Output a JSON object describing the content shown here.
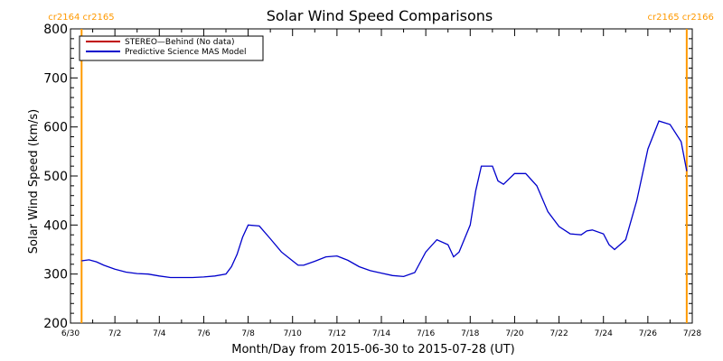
{
  "chart_data": {
    "type": "line",
    "title": "Solar Wind Speed Comparisons",
    "xlabel": "Month/Day from 2015-06-30 to 2015-07-28 (UT)",
    "ylabel": "Solar Wind Speed (km/s)",
    "xlim": [
      "2015-06-30",
      "2015-07-28"
    ],
    "ylim": [
      200,
      800
    ],
    "x_tick_labels": [
      "6/30",
      "7/2",
      "7/4",
      "7/6",
      "7/8",
      "7/10",
      "7/12",
      "7/14",
      "7/16",
      "7/18",
      "7/20",
      "7/22",
      "7/24",
      "7/26",
      "7/28"
    ],
    "y_ticks": [
      200,
      300,
      400,
      500,
      600,
      700,
      800
    ],
    "grid": false,
    "legend_position": "top-left",
    "legend": [
      {
        "label": "STEREO—Behind (No data)",
        "color": "#c00000"
      },
      {
        "label": "Predictive Science MAS Model",
        "color": "#0000cc"
      }
    ],
    "carrington_markers": [
      {
        "label": "cr2164 cr2165",
        "date": "2015-06-30T12:00",
        "side": "left",
        "color": "#ff9900"
      },
      {
        "label": "cr2165 cr2166",
        "date": "2015-07-27T18:00",
        "side": "right",
        "color": "#ff9900"
      }
    ],
    "series": [
      {
        "name": "Predictive Science MAS Model",
        "color": "#0000cc",
        "x": [
          "2015-06-30T12:00",
          "2015-06-30T20:00",
          "2015-07-01T04:00",
          "2015-07-01T12:00",
          "2015-07-02T00:00",
          "2015-07-02T12:00",
          "2015-07-03T00:00",
          "2015-07-03T12:00",
          "2015-07-04T00:00",
          "2015-07-04T12:00",
          "2015-07-05T00:00",
          "2015-07-05T12:00",
          "2015-07-06T00:00",
          "2015-07-06T12:00",
          "2015-07-07T00:00",
          "2015-07-07T06:00",
          "2015-07-07T12:00",
          "2015-07-07T18:00",
          "2015-07-08T00:00",
          "2015-07-08T12:00",
          "2015-07-09T00:00",
          "2015-07-09T12:00",
          "2015-07-10T00:00",
          "2015-07-10T06:00",
          "2015-07-10T12:00",
          "2015-07-11T00:00",
          "2015-07-11T12:00",
          "2015-07-12T00:00",
          "2015-07-12T12:00",
          "2015-07-13T00:00",
          "2015-07-13T12:00",
          "2015-07-14T00:00",
          "2015-07-14T12:00",
          "2015-07-15T00:00",
          "2015-07-15T12:00",
          "2015-07-16T00:00",
          "2015-07-16T12:00",
          "2015-07-17T00:00",
          "2015-07-17T06:00",
          "2015-07-17T12:00",
          "2015-07-18T00:00",
          "2015-07-18T06:00",
          "2015-07-18T12:00",
          "2015-07-19T00:00",
          "2015-07-19T06:00",
          "2015-07-19T12:00",
          "2015-07-20T00:00",
          "2015-07-20T12:00",
          "2015-07-21T00:00",
          "2015-07-21T12:00",
          "2015-07-22T00:00",
          "2015-07-22T12:00",
          "2015-07-23T00:00",
          "2015-07-23T06:00",
          "2015-07-23T12:00",
          "2015-07-24T00:00",
          "2015-07-24T06:00",
          "2015-07-24T12:00",
          "2015-07-25T00:00",
          "2015-07-25T12:00",
          "2015-07-26T00:00",
          "2015-07-26T12:00",
          "2015-07-27T00:00",
          "2015-07-27T12:00",
          "2015-07-27T18:00"
        ],
        "y": [
          327,
          329,
          325,
          318,
          310,
          304,
          301,
          300,
          296,
          293,
          293,
          293,
          294,
          296,
          300,
          315,
          340,
          375,
          400,
          398,
          372,
          345,
          327,
          318,
          318,
          326,
          335,
          337,
          328,
          315,
          307,
          302,
          297,
          295,
          303,
          345,
          370,
          360,
          335,
          345,
          400,
          470,
          520,
          520,
          490,
          483,
          505,
          505,
          480,
          427,
          397,
          382,
          380,
          388,
          390,
          382,
          360,
          350,
          370,
          450,
          555,
          612,
          605,
          570,
          510
        ]
      }
    ]
  }
}
